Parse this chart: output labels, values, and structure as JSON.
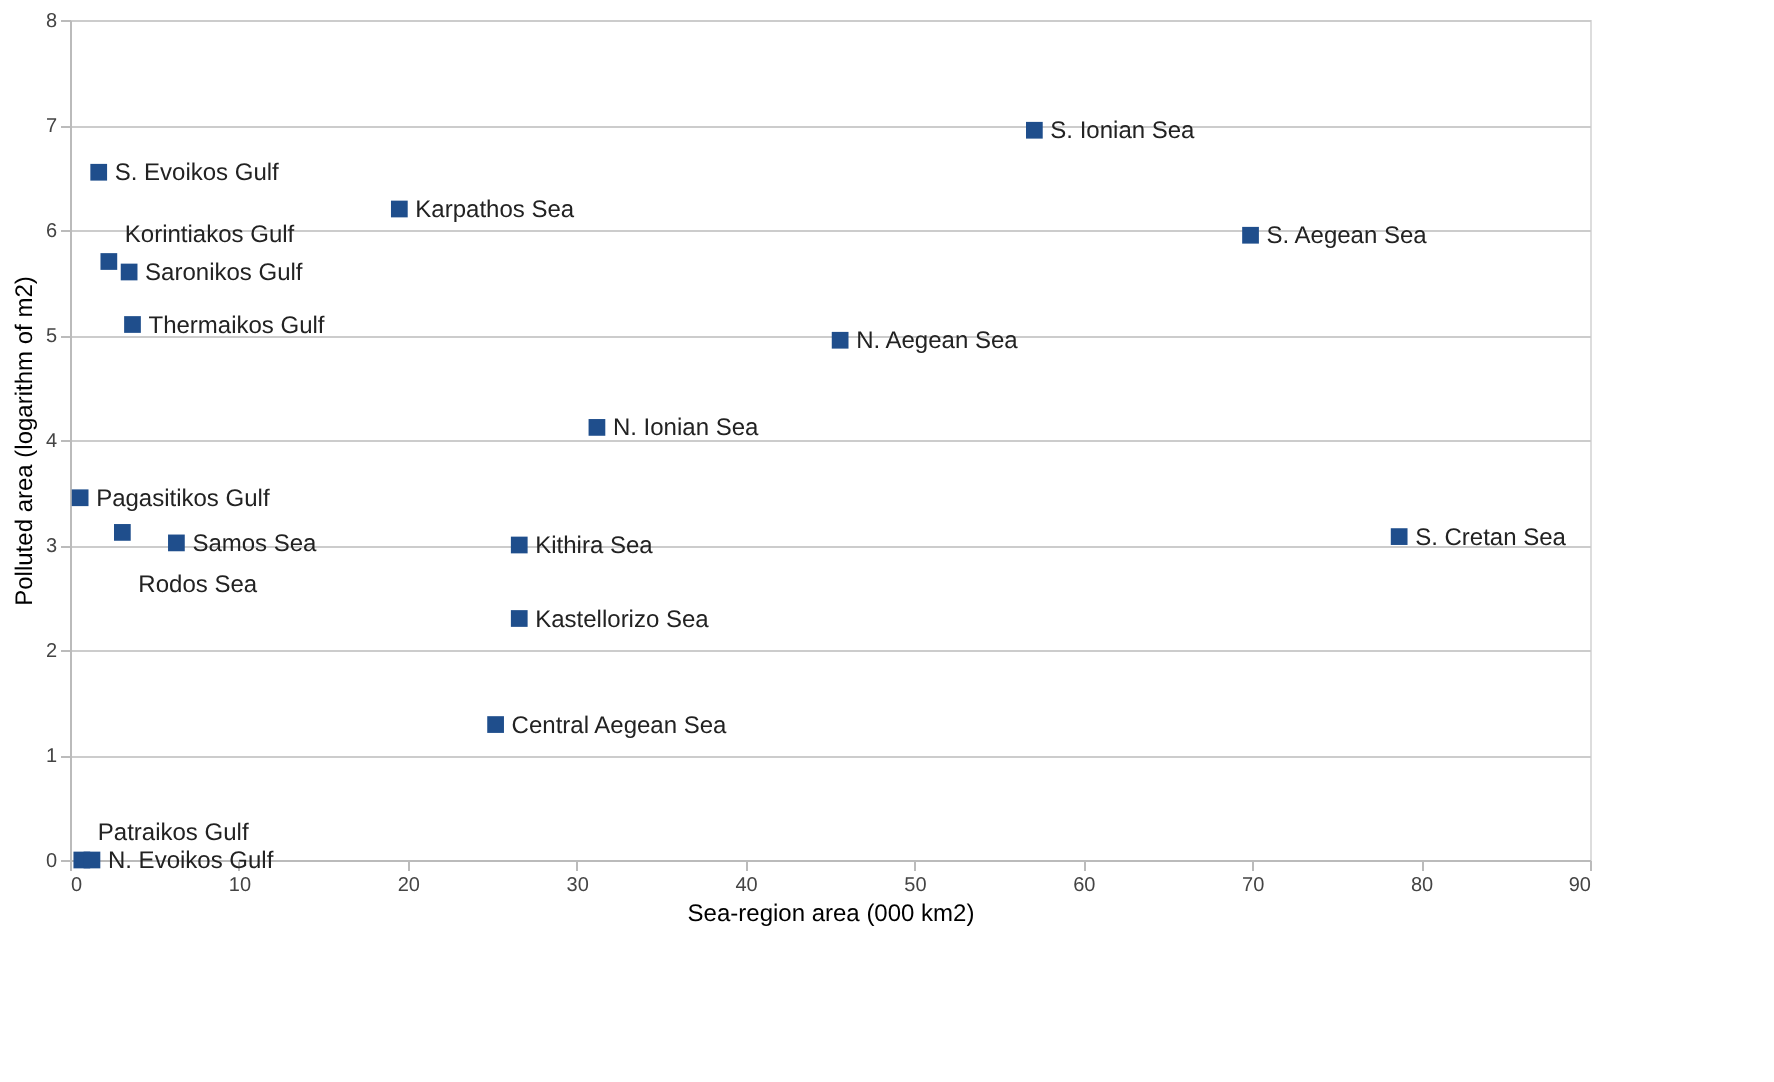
{
  "chart_data": {
    "type": "scatter",
    "xlabel": "Sea-region area (000 km2)",
    "ylabel": "Polluted area (logarithm of m2)",
    "x": [
      1.7,
      2.3,
      3.5,
      3.7,
      19.5,
      57.1,
      69.9,
      45.6,
      31.2,
      0.6,
      3.1,
      6.3,
      26.6,
      78.7,
      26.6,
      25.2,
      0.7,
      1.3
    ],
    "series": [
      {
        "color": "#1f4e8c",
        "values": [
          6.55,
          5.7,
          5.6,
          5.1,
          6.2,
          6.95,
          5.95,
          4.95,
          4.12,
          3.45,
          3.12,
          3.02,
          3.0,
          3.08,
          2.3,
          1.29,
          0.0,
          0.0
        ]
      }
    ],
    "annotations": [
      {
        "text": "S. Evoikos Gulf",
        "x": 1.7,
        "y": 6.55
      },
      {
        "text": "Korintiakos Gulf",
        "x": 2.3,
        "y": 5.7
      },
      {
        "text": "Saronikos Gulf",
        "x": 3.5,
        "y": 5.6
      },
      {
        "text": "Thermaikos Gulf",
        "x": 3.7,
        "y": 5.1
      },
      {
        "text": "Karpathos Sea",
        "x": 19.5,
        "y": 6.2
      },
      {
        "text": "S. Ionian Sea",
        "x": 57.1,
        "y": 6.95
      },
      {
        "text": "S. Aegean Sea",
        "x": 69.9,
        "y": 5.95
      },
      {
        "text": "N. Aegean Sea",
        "x": 45.6,
        "y": 4.95
      },
      {
        "text": "N. Ionian Sea",
        "x": 31.2,
        "y": 4.12
      },
      {
        "text": "Pagasitikos Gulf",
        "x": 0.6,
        "y": 3.45
      },
      {
        "text": "Rodos Sea",
        "x": 3.1,
        "y": 3.12
      },
      {
        "text": "Samos Sea",
        "x": 6.3,
        "y": 3.02
      },
      {
        "text": "Kithira Sea",
        "x": 26.6,
        "y": 3.0
      },
      {
        "text": "S. Cretan Sea",
        "x": 78.7,
        "y": 3.08
      },
      {
        "text": "Kastellorizo Sea",
        "x": 26.6,
        "y": 2.3
      },
      {
        "text": "Central Aegean Sea",
        "x": 25.2,
        "y": 1.29
      },
      {
        "text": "Patraikos Gulf",
        "x": 0.7,
        "y": 0.0
      },
      {
        "text": "N. Evoikos Gulf",
        "x": 1.3,
        "y": 0.0
      }
    ],
    "xlim": [
      0,
      90
    ],
    "xticks": [
      0,
      10,
      20,
      30,
      40,
      50,
      60,
      70,
      80,
      90
    ],
    "ylim": [
      0,
      8
    ],
    "yticks": [
      0,
      1,
      2,
      3,
      4,
      5,
      6,
      7,
      8
    ],
    "grid": "y",
    "marker": "square"
  }
}
